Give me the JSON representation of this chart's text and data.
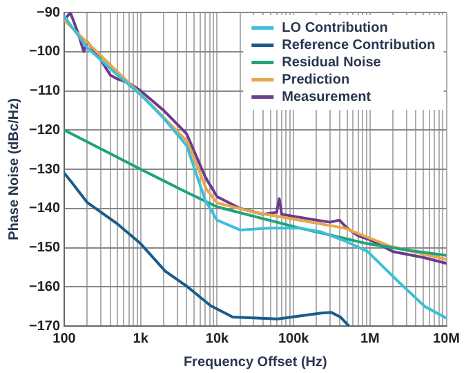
{
  "chart_data": {
    "type": "line",
    "xlabel": "Frequency Offset (Hz)",
    "ylabel": "Phase Noise (dBc/Hz)",
    "log": "x",
    "grid": true,
    "legend": "top right",
    "marker": "none",
    "line_style": "solid",
    "xlim": [
      100,
      10000000
    ],
    "ylim": [
      -170,
      -90
    ],
    "xticks": [
      {
        "value": 100,
        "label": "100"
      },
      {
        "value": 200,
        "label": null
      },
      {
        "value": 300,
        "label": null
      },
      {
        "value": 400,
        "label": null
      },
      {
        "value": 500,
        "label": null
      },
      {
        "value": 600,
        "label": null
      },
      {
        "value": 700,
        "label": null
      },
      {
        "value": 800,
        "label": null
      },
      {
        "value": 900,
        "label": null
      },
      {
        "value": 1000,
        "label": "1k"
      },
      {
        "value": 2000,
        "label": null
      },
      {
        "value": 3000,
        "label": null
      },
      {
        "value": 4000,
        "label": null
      },
      {
        "value": 5000,
        "label": null
      },
      {
        "value": 6000,
        "label": null
      },
      {
        "value": 7000,
        "label": null
      },
      {
        "value": 8000,
        "label": null
      },
      {
        "value": 9000,
        "label": null
      },
      {
        "value": 10000,
        "label": "10k"
      },
      {
        "value": 20000,
        "label": null
      },
      {
        "value": 30000,
        "label": null
      },
      {
        "value": 40000,
        "label": null
      },
      {
        "value": 50000,
        "label": null
      },
      {
        "value": 60000,
        "label": null
      },
      {
        "value": 70000,
        "label": null
      },
      {
        "value": 80000,
        "label": null
      },
      {
        "value": 90000,
        "label": null
      },
      {
        "value": 100000,
        "label": "100k"
      },
      {
        "value": 200000,
        "label": null
      },
      {
        "value": 300000,
        "label": null
      },
      {
        "value": 400000,
        "label": null
      },
      {
        "value": 500000,
        "label": null
      },
      {
        "value": 600000,
        "label": null
      },
      {
        "value": 700000,
        "label": null
      },
      {
        "value": 800000,
        "label": null
      },
      {
        "value": 900000,
        "label": null
      },
      {
        "value": 1000000,
        "label": "1M"
      },
      {
        "value": 2000000,
        "label": null
      },
      {
        "value": 3000000,
        "label": null
      },
      {
        "value": 4000000,
        "label": null
      },
      {
        "value": 5000000,
        "label": null
      },
      {
        "value": 6000000,
        "label": null
      },
      {
        "value": 7000000,
        "label": null
      },
      {
        "value": 8000000,
        "label": null
      },
      {
        "value": 9000000,
        "label": null
      },
      {
        "value": 10000000,
        "label": "10M"
      }
    ],
    "yticks": [
      -170,
      -160,
      -150,
      -140,
      -130,
      -120,
      -110,
      -100,
      -90
    ],
    "series": [
      {
        "name": "LO Contribution",
        "color": "#3cbfd9",
        "x": [
          100,
          200,
          500,
          1000,
          2000,
          4000,
          7000,
          10000,
          20000,
          50000,
          120000,
          230000,
          500000,
          930000,
          2300000,
          5200000,
          10000000
        ],
        "values": [
          -91,
          -99,
          -106,
          -111,
          -117,
          -124,
          -138,
          -143,
          -145.5,
          -145,
          -145,
          -146,
          -148.5,
          -151,
          -158.5,
          -165,
          -168
        ]
      },
      {
        "name": "Reference Contribution",
        "color": "#1a5c8a",
        "x": [
          100,
          127,
          200,
          500,
          1000,
          2100,
          4100,
          8200,
          16000,
          62000,
          230000,
          310000,
          410000,
          530000
        ],
        "values": [
          -131,
          -133.5,
          -138.5,
          -144,
          -149,
          -156,
          -160,
          -164.8,
          -167.7,
          -168.2,
          -166.7,
          -166.5,
          -167.7,
          -170
        ]
      },
      {
        "name": "Residual Noise",
        "color": "#20a37a",
        "x": [
          100,
          1000,
          4100,
          10000,
          120000,
          930000,
          3500000,
          10000000
        ],
        "values": [
          -120,
          -130,
          -136,
          -139.6,
          -145,
          -149,
          -150.8,
          -152
        ]
      },
      {
        "name": "Prediction",
        "color": "#e6a84a",
        "x": [
          100,
          1080,
          2100,
          4100,
          7200,
          10000,
          31000,
          120000,
          460000,
          1800000,
          10000000
        ],
        "values": [
          -92,
          -111.5,
          -117.2,
          -123,
          -135,
          -138.6,
          -141,
          -143,
          -145,
          -149.6,
          -153
        ]
      },
      {
        "name": "Measurement",
        "color": "#6b3b8c",
        "x": [
          100,
          120,
          150,
          180,
          200,
          250,
          300,
          400,
          500,
          700,
          1000,
          2000,
          4000,
          7000,
          10000,
          20000,
          40000,
          60000,
          65000,
          70000,
          100000,
          200000,
          300000,
          400000,
          500000,
          700000,
          1000000,
          2000000,
          5000000,
          10000000
        ],
        "values": [
          -92,
          -90,
          -95,
          -100,
          -97.5,
          -100,
          -102,
          -106,
          -107,
          -108,
          -110,
          -115,
          -121,
          -132,
          -137,
          -140,
          -141.5,
          -141,
          -137.5,
          -141.5,
          -142,
          -143,
          -143.5,
          -143,
          -145,
          -147,
          -148,
          -151,
          -152.5,
          -154
        ]
      }
    ]
  }
}
